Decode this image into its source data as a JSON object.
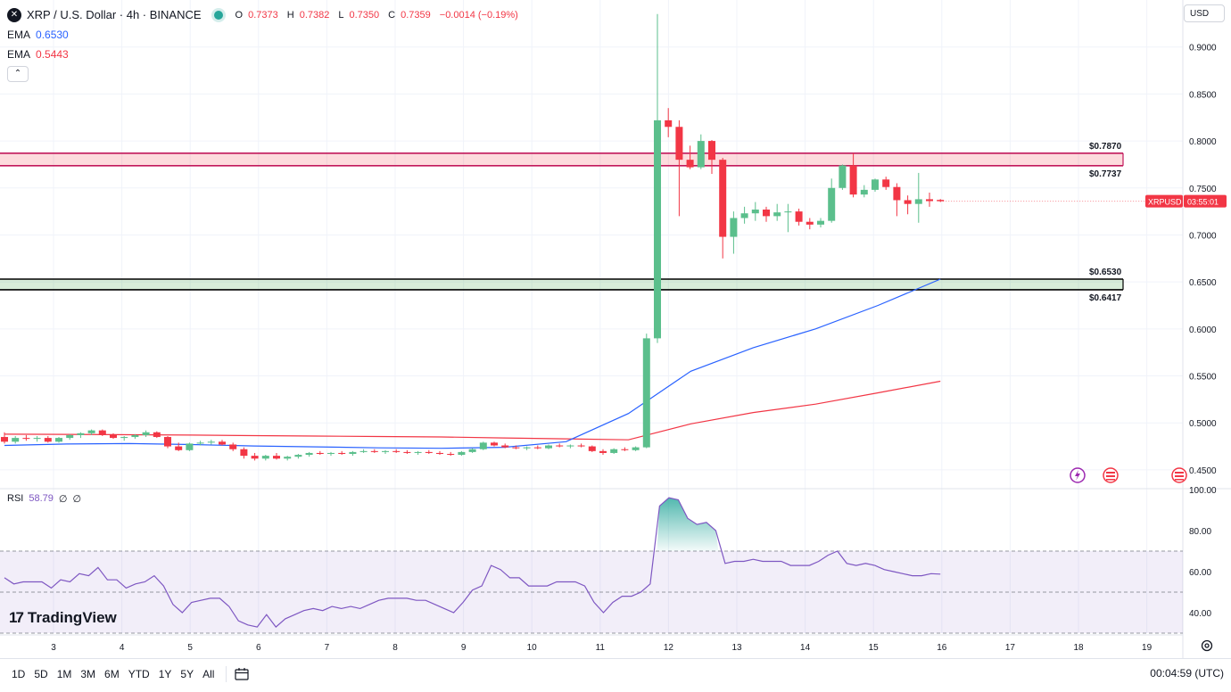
{
  "header": {
    "symbol_icon": "x-icon",
    "title": "XRP / U.S. Dollar · 4h · BINANCE",
    "ohlc": [
      {
        "label": "O",
        "value": "0.7373"
      },
      {
        "label": "H",
        "value": "0.7382"
      },
      {
        "label": "L",
        "value": "0.7350"
      },
      {
        "label": "C",
        "value": "0.7359"
      }
    ],
    "change": "−0.0014 (−0.19%)",
    "ema1_label": "EMA",
    "ema1_value": "0.6530",
    "ema2_label": "EMA",
    "ema2_value": "0.5443",
    "currency": "USD"
  },
  "rsi_legend": {
    "label": "RSI",
    "value": "58.79",
    "extra1": "∅",
    "extra2": "∅"
  },
  "branding": {
    "logo_text": "TradingView",
    "logo_mark": "17"
  },
  "bottom_bar": {
    "timeframes": [
      "1D",
      "5D",
      "1M",
      "3M",
      "6M",
      "YTD",
      "1Y",
      "5Y",
      "All"
    ],
    "clock": "00:04:59 (UTC)"
  },
  "colors": {
    "up": "#26a69a",
    "up_fill": "#5bbf8c",
    "down": "#f23645",
    "ema_fast": "#2962ff",
    "ema_slow": "#f23645",
    "rsi": "#7e57c2"
  },
  "chart_data": [
    {
      "type": "candlestick",
      "title": "XRP / U.S. Dollar · 4h · BINANCE",
      "ylim": [
        0.43,
        0.95
      ],
      "y_ticks": [
        "0.9000",
        "0.8500",
        "0.8000",
        "0.7500",
        "0.7000",
        "0.6500",
        "0.6000",
        "0.5500",
        "0.5000",
        "0.4500"
      ],
      "y_tick_values": [
        0.9,
        0.85,
        0.8,
        0.75,
        0.7,
        0.65,
        0.6,
        0.55,
        0.5,
        0.45
      ],
      "x_ticks": [
        "3",
        "4",
        "5",
        "6",
        "7",
        "8",
        "9",
        "10",
        "11",
        "12",
        "13",
        "14",
        "15",
        "16",
        "17",
        "18",
        "19"
      ],
      "x_tick_days": [
        3,
        4,
        5,
        6,
        7,
        8,
        9,
        10,
        11,
        12,
        13,
        14,
        15,
        16,
        17,
        18,
        19
      ],
      "candles": [
        [
          0.485,
          0.49,
          0.478,
          0.48
        ],
        [
          0.48,
          0.486,
          0.478,
          0.484
        ],
        [
          0.484,
          0.487,
          0.481,
          0.483
        ],
        [
          0.483,
          0.486,
          0.48,
          0.484
        ],
        [
          0.484,
          0.486,
          0.479,
          0.48
        ],
        [
          0.48,
          0.485,
          0.479,
          0.484
        ],
        [
          0.484,
          0.488,
          0.482,
          0.487
        ],
        [
          0.487,
          0.49,
          0.484,
          0.489
        ],
        [
          0.489,
          0.493,
          0.487,
          0.492
        ],
        [
          0.492,
          0.493,
          0.486,
          0.487
        ],
        [
          0.487,
          0.489,
          0.483,
          0.484
        ],
        [
          0.484,
          0.486,
          0.481,
          0.485
        ],
        [
          0.485,
          0.488,
          0.483,
          0.487
        ],
        [
          0.487,
          0.492,
          0.485,
          0.49
        ],
        [
          0.49,
          0.491,
          0.484,
          0.485
        ],
        [
          0.485,
          0.486,
          0.473,
          0.475
        ],
        [
          0.475,
          0.479,
          0.47,
          0.471
        ],
        [
          0.471,
          0.479,
          0.47,
          0.478
        ],
        [
          0.478,
          0.481,
          0.476,
          0.479
        ],
        [
          0.479,
          0.482,
          0.477,
          0.48
        ],
        [
          0.48,
          0.482,
          0.476,
          0.477
        ],
        [
          0.477,
          0.479,
          0.47,
          0.472
        ],
        [
          0.472,
          0.474,
          0.462,
          0.465
        ],
        [
          0.465,
          0.468,
          0.46,
          0.462
        ],
        [
          0.462,
          0.466,
          0.46,
          0.465
        ],
        [
          0.465,
          0.468,
          0.461,
          0.462
        ],
        [
          0.462,
          0.465,
          0.46,
          0.464
        ],
        [
          0.464,
          0.467,
          0.462,
          0.466
        ],
        [
          0.466,
          0.469,
          0.464,
          0.468
        ],
        [
          0.468,
          0.47,
          0.466,
          0.467
        ],
        [
          0.467,
          0.469,
          0.465,
          0.468
        ],
        [
          0.468,
          0.47,
          0.466,
          0.467
        ],
        [
          0.467,
          0.47,
          0.465,
          0.469
        ],
        [
          0.469,
          0.472,
          0.468,
          0.47
        ],
        [
          0.47,
          0.472,
          0.468,
          0.469
        ],
        [
          0.469,
          0.471,
          0.467,
          0.47
        ],
        [
          0.47,
          0.472,
          0.468,
          0.469
        ],
        [
          0.469,
          0.471,
          0.467,
          0.468
        ],
        [
          0.468,
          0.47,
          0.466,
          0.469
        ],
        [
          0.469,
          0.471,
          0.467,
          0.468
        ],
        [
          0.468,
          0.47,
          0.466,
          0.467
        ],
        [
          0.467,
          0.469,
          0.465,
          0.466
        ],
        [
          0.466,
          0.47,
          0.465,
          0.469
        ],
        [
          0.469,
          0.473,
          0.468,
          0.472
        ],
        [
          0.472,
          0.48,
          0.471,
          0.479
        ],
        [
          0.479,
          0.48,
          0.475,
          0.476
        ],
        [
          0.476,
          0.478,
          0.473,
          0.474
        ],
        [
          0.474,
          0.476,
          0.472,
          0.473
        ],
        [
          0.473,
          0.475,
          0.471,
          0.474
        ],
        [
          0.474,
          0.476,
          0.472,
          0.473
        ],
        [
          0.473,
          0.477,
          0.472,
          0.476
        ],
        [
          0.476,
          0.478,
          0.474,
          0.475
        ],
        [
          0.475,
          0.477,
          0.473,
          0.476
        ],
        [
          0.476,
          0.478,
          0.474,
          0.475
        ],
        [
          0.475,
          0.476,
          0.469,
          0.47
        ],
        [
          0.47,
          0.472,
          0.466,
          0.468
        ],
        [
          0.468,
          0.473,
          0.467,
          0.472
        ],
        [
          0.472,
          0.474,
          0.47,
          0.471
        ],
        [
          0.471,
          0.475,
          0.47,
          0.474
        ],
        [
          0.474,
          0.595,
          0.473,
          0.59
        ],
        [
          0.59,
          0.935,
          0.585,
          0.822
        ],
        [
          0.822,
          0.835,
          0.804,
          0.815
        ],
        [
          0.815,
          0.822,
          0.72,
          0.78
        ],
        [
          0.78,
          0.795,
          0.77,
          0.772
        ],
        [
          0.772,
          0.807,
          0.77,
          0.8
        ],
        [
          0.8,
          0.801,
          0.765,
          0.78
        ],
        [
          0.78,
          0.782,
          0.675,
          0.698
        ],
        [
          0.698,
          0.725,
          0.68,
          0.718
        ],
        [
          0.718,
          0.73,
          0.712,
          0.723
        ],
        [
          0.723,
          0.735,
          0.715,
          0.727
        ],
        [
          0.727,
          0.73,
          0.714,
          0.72
        ],
        [
          0.72,
          0.733,
          0.715,
          0.724
        ],
        [
          0.724,
          0.733,
          0.703,
          0.725
        ],
        [
          0.725,
          0.728,
          0.71,
          0.714
        ],
        [
          0.714,
          0.718,
          0.706,
          0.711
        ],
        [
          0.711,
          0.718,
          0.708,
          0.715
        ],
        [
          0.715,
          0.76,
          0.713,
          0.75
        ],
        [
          0.75,
          0.775,
          0.748,
          0.774
        ],
        [
          0.774,
          0.787,
          0.74,
          0.743
        ],
        [
          0.743,
          0.753,
          0.74,
          0.748
        ],
        [
          0.748,
          0.76,
          0.746,
          0.759
        ],
        [
          0.759,
          0.762,
          0.748,
          0.751
        ],
        [
          0.751,
          0.755,
          0.72,
          0.737
        ],
        [
          0.737,
          0.742,
          0.722,
          0.733
        ],
        [
          0.733,
          0.766,
          0.713,
          0.738
        ],
        [
          0.738,
          0.745,
          0.73,
          0.736
        ],
        [
          0.7373,
          0.7382,
          0.735,
          0.7359
        ]
      ],
      "ema_fast": [
        0.476,
        0.4775,
        0.478,
        0.477,
        0.4755,
        0.4745,
        0.4735,
        0.473,
        0.474,
        0.48,
        0.51,
        0.555,
        0.58,
        0.6,
        0.625,
        0.653
      ],
      "ema_slow": [
        0.488,
        0.4878,
        0.4874,
        0.487,
        0.4865,
        0.486,
        0.4855,
        0.485,
        0.484,
        0.483,
        0.482,
        0.499,
        0.511,
        0.52,
        0.532,
        0.5443
      ],
      "levels": [
        {
          "label": "$0.7870",
          "value": 0.787
        },
        {
          "label": "$0.7737",
          "value": 0.7737
        },
        {
          "label": "$0.6530",
          "value": 0.653
        },
        {
          "label": "$0.6417",
          "value": 0.6417
        }
      ],
      "zones": [
        {
          "name": "resistance",
          "from": 0.7737,
          "to": 0.787,
          "color": "#f23645"
        },
        {
          "name": "support",
          "from": 0.6417,
          "to": 0.653,
          "color": "#26a69a"
        }
      ],
      "last_price_tag": {
        "symbol": "XRPUSD",
        "countdown": "03:55:01",
        "value": 0.7359
      }
    },
    {
      "type": "line",
      "title": "RSI",
      "ylim": [
        30,
        100
      ],
      "y_ticks": [
        "100.00",
        "80.00",
        "60.00",
        "40.00"
      ],
      "y_tick_values": [
        100,
        80,
        60,
        40
      ],
      "bands": {
        "upper": 70,
        "middle": 50,
        "lower": 30
      },
      "values": [
        57,
        54,
        55,
        55,
        55,
        52,
        56,
        55,
        59,
        58,
        62,
        56,
        56,
        52,
        54,
        55,
        58,
        53,
        44,
        40,
        45,
        46,
        47,
        47,
        43,
        36,
        34,
        33,
        39,
        33,
        37,
        39,
        41,
        42,
        41,
        43,
        42,
        43,
        42,
        44,
        46,
        47,
        47,
        47,
        46,
        46,
        44,
        42,
        40,
        45,
        51,
        53,
        63,
        61,
        57,
        57,
        53,
        53,
        53,
        55,
        55,
        55,
        53,
        45,
        40,
        45,
        48,
        48,
        50,
        54,
        92,
        96,
        95,
        86,
        83,
        84,
        80,
        64,
        65,
        65,
        66,
        65,
        65,
        65,
        63,
        63,
        63,
        65,
        68,
        70,
        64,
        63,
        64,
        63,
        61,
        60,
        59,
        58,
        58,
        59,
        58.79
      ]
    }
  ]
}
